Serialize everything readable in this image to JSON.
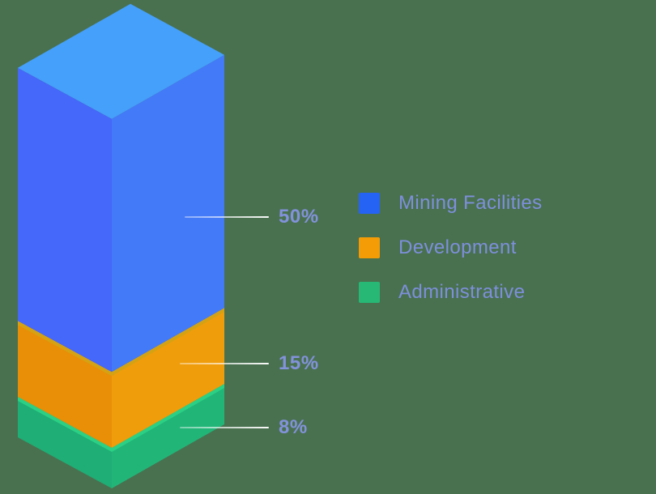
{
  "background_color": "#49714F",
  "chart_data": {
    "type": "bar",
    "variant": "isometric-stacked-column",
    "title": "",
    "unit": "%",
    "legend_position": "right",
    "grid": false,
    "segments": [
      {
        "label": "Mining Facilities",
        "value": 50,
        "percent_label": "50%",
        "color": "#2563F5",
        "face_left": "#4567FA",
        "face_right": "#437AF8",
        "face_top": "#45A0FB",
        "rim_color": null
      },
      {
        "label": "Development",
        "value": 15,
        "percent_label": "15%",
        "color": "#F39C06",
        "face_left": "#E88F07",
        "face_right": "#F09D0B",
        "face_top": null,
        "rim_color": "#D5A213"
      },
      {
        "label": "Administrative",
        "value": 8,
        "percent_label": "8%",
        "color": "#27B876",
        "face_left": "#1FAE75",
        "face_right": "#22B578",
        "face_top": null,
        "rim_color": "#2BD084"
      }
    ],
    "value_label_color": "#8292DB",
    "legend_label_color": "#7D8FDC",
    "callout_line_color": "#FFFFFF"
  }
}
